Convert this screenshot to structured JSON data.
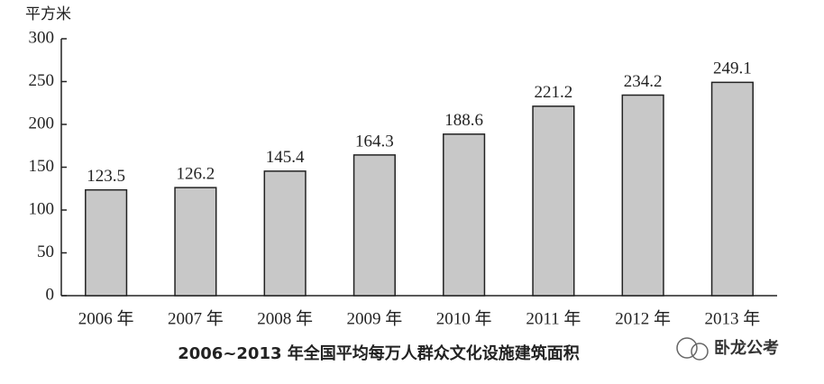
{
  "chart_data": {
    "type": "bar",
    "title": "2006~2013 年全国平均每万人群众文化设施建筑面积",
    "y_label": "平方米",
    "categories": [
      "2006 年",
      "2007 年",
      "2008 年",
      "2009 年",
      "2010 年",
      "2011 年",
      "2012 年",
      "2013 年"
    ],
    "values": [
      123.5,
      126.2,
      145.4,
      164.3,
      188.6,
      221.2,
      234.2,
      249.1
    ],
    "color": "#c8c8c8",
    "ylim": [
      0,
      300
    ],
    "yticks": [
      0,
      50,
      100,
      150,
      200,
      250,
      300
    ],
    "grid": false,
    "watermark": "卧龙公考"
  }
}
